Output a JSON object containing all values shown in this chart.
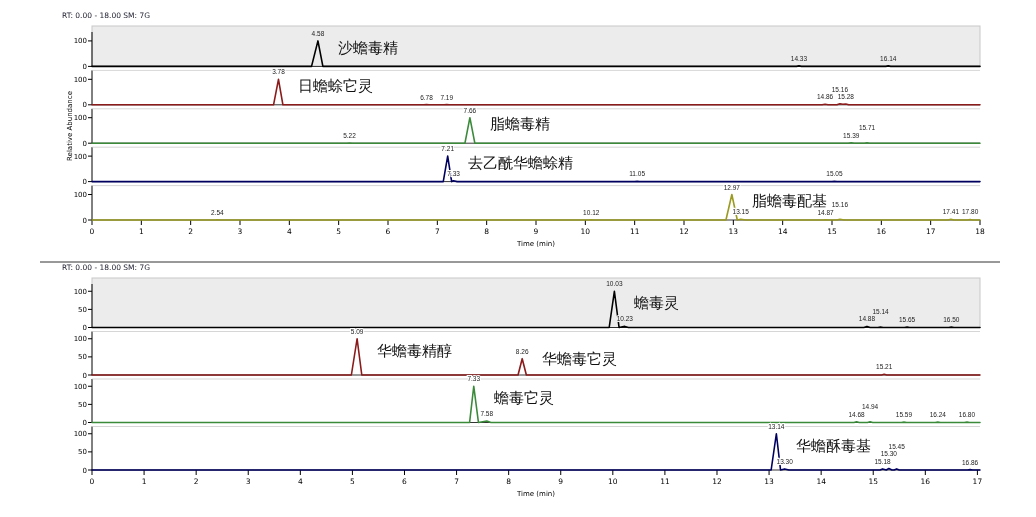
{
  "chart_data": [
    {
      "type": "line",
      "title": "RT: 0.00 - 18.00  SM: 7G",
      "xlim": [
        0,
        18
      ],
      "ylim": [
        0,
        135
      ],
      "yticks": [
        0,
        100
      ],
      "tick_labels": "y",
      "grid": false,
      "series": [
        {
          "color": "#000000",
          "x": [
            0,
            4.45,
            4.58,
            4.68,
            14.28,
            14.33,
            14.38,
            16.09,
            16.14,
            16.19,
            18
          ],
          "values": [
            0,
            0,
            100,
            0,
            0,
            2,
            0,
            0,
            2,
            0,
            0
          ]
        }
      ],
      "annotations": [
        {
          "text": "4.58",
          "x": 4.58,
          "y": 100
        },
        {
          "text": "沙蟾毒精",
          "x": 4.58,
          "y": 100
        },
        {
          "text": "14.33",
          "x": 14.33,
          "y": 2
        },
        {
          "text": "16.14",
          "x": 16.14,
          "y": 2
        }
      ]
    },
    {
      "type": "line",
      "xlim": [
        0,
        18
      ],
      "ylim": [
        0,
        135
      ],
      "yticks": [
        0,
        100
      ],
      "tick_labels": "y",
      "grid": false,
      "series": [
        {
          "color": "#8b1a1a",
          "x": [
            0,
            3.68,
            3.78,
            3.87,
            6.73,
            6.78,
            6.83,
            7.14,
            7.19,
            7.24,
            14.8,
            14.86,
            14.92,
            15.1,
            15.16,
            15.22,
            15.28,
            15.34,
            18
          ],
          "values": [
            0,
            0,
            100,
            0,
            0,
            1,
            0,
            0,
            1,
            0,
            0,
            2,
            0,
            0,
            4,
            2,
            3,
            0,
            0
          ]
        }
      ],
      "annotations": [
        {
          "text": "3.78",
          "x": 3.78,
          "y": 100
        },
        {
          "text": "日蟾蜍它灵",
          "x": 3.78,
          "y": 100
        },
        {
          "text": "6.78",
          "x": 6.78,
          "y": 1
        },
        {
          "text": "7.19",
          "x": 7.19,
          "y": 1
        },
        {
          "text": "14.86",
          "x": 14.86,
          "y": 2
        },
        {
          "text": "15.16",
          "x": 15.16,
          "y": 4
        },
        {
          "text": "15.28",
          "x": 15.28,
          "y": 3
        }
      ]
    },
    {
      "type": "line",
      "ylabel": "Relative Abundance",
      "xlim": [
        0,
        18
      ],
      "ylim": [
        0,
        135
      ],
      "yticks": [
        0,
        100
      ],
      "tick_labels": "y",
      "grid": false,
      "series": [
        {
          "color": "#3a8a3a",
          "x": [
            0,
            5.17,
            5.22,
            5.27,
            7.56,
            7.66,
            7.76,
            15.33,
            15.39,
            15.45,
            15.66,
            15.71,
            15.76,
            18
          ],
          "values": [
            0,
            0,
            1,
            0,
            0,
            100,
            0,
            0,
            2,
            0,
            0,
            2,
            0,
            0
          ]
        }
      ],
      "annotations": [
        {
          "text": "5.22",
          "x": 5.22,
          "y": 1
        },
        {
          "text": "7.66",
          "x": 7.66,
          "y": 100
        },
        {
          "text": "脂蟾毒精",
          "x": 7.66,
          "y": 100
        },
        {
          "text": "15.39",
          "x": 15.39,
          "y": 2
        },
        {
          "text": "15.71",
          "x": 15.71,
          "y": 2
        }
      ]
    },
    {
      "type": "line",
      "xlim": [
        0,
        18
      ],
      "ylim": [
        0,
        135
      ],
      "yticks": [
        0,
        100
      ],
      "tick_labels": "y",
      "grid": false,
      "series": [
        {
          "color": "#000060",
          "x": [
            0,
            7.12,
            7.21,
            7.29,
            7.33,
            7.4,
            11.0,
            11.05,
            11.1,
            15.0,
            15.05,
            15.1,
            18
          ],
          "values": [
            0,
            0,
            100,
            0,
            3,
            0,
            0,
            1,
            0,
            0,
            1,
            0,
            0
          ]
        }
      ],
      "annotations": [
        {
          "text": "7.21",
          "x": 7.21,
          "y": 100
        },
        {
          "text": "去乙酰华蟾蜍精",
          "x": 7.21,
          "y": 100
        },
        {
          "text": "7.33",
          "x": 7.33,
          "y": 3
        },
        {
          "text": "11.05",
          "x": 11.05,
          "y": 1
        },
        {
          "text": "15.05",
          "x": 15.05,
          "y": 1
        }
      ]
    },
    {
      "type": "line",
      "xlabel": "Time (min)",
      "xlim": [
        0,
        18
      ],
      "xticks": [
        0,
        1,
        2,
        3,
        4,
        5,
        6,
        7,
        8,
        9,
        10,
        11,
        12,
        13,
        14,
        15,
        16,
        17,
        18
      ],
      "ylim": [
        0,
        135
      ],
      "yticks": [
        0,
        100
      ],
      "grid": false,
      "series": [
        {
          "color": "#9a9a20",
          "x": [
            0,
            2.49,
            2.54,
            2.59,
            10.07,
            10.12,
            10.17,
            12.85,
            12.97,
            13.08,
            13.15,
            13.25,
            14.82,
            14.87,
            14.92,
            15.1,
            15.16,
            15.25,
            17.35,
            17.41,
            17.47,
            17.75,
            17.8,
            17.85,
            18
          ],
          "values": [
            0,
            0,
            1,
            0,
            0,
            1,
            0,
            0,
            100,
            0,
            3,
            0,
            0,
            1,
            0,
            0,
            3,
            0,
            0,
            3,
            0,
            0,
            2,
            0,
            0
          ]
        }
      ],
      "annotations": [
        {
          "text": "2.54",
          "x": 2.54,
          "y": 1
        },
        {
          "text": "10.12",
          "x": 10.12,
          "y": 1
        },
        {
          "text": "12.97",
          "x": 12.97,
          "y": 100
        },
        {
          "text": "脂蟾毒配基",
          "x": 12.97,
          "y": 100
        },
        {
          "text": "13.15",
          "x": 13.15,
          "y": 3
        },
        {
          "text": "14.87",
          "x": 14.87,
          "y": 1
        },
        {
          "text": "15.16",
          "x": 15.16,
          "y": 3
        },
        {
          "text": "17.41",
          "x": 17.41,
          "y": 3
        },
        {
          "text": "17.80",
          "x": 17.8,
          "y": 2
        }
      ]
    },
    {
      "type": "line",
      "title": "RT: 0.00 - 18.00  SM: 7G",
      "xlim": [
        0,
        17.05
      ],
      "ylim": [
        0,
        120
      ],
      "yticks": [
        0,
        50,
        100
      ],
      "tick_labels": "y",
      "grid": false,
      "series": [
        {
          "color": "#000000",
          "x": [
            0,
            9.93,
            10.03,
            10.12,
            10.23,
            10.3,
            14.82,
            14.88,
            14.94,
            15.09,
            15.14,
            15.19,
            15.6,
            15.65,
            15.7,
            16.45,
            16.5,
            16.55,
            17.05
          ],
          "values": [
            0,
            0,
            100,
            0,
            3,
            0,
            0,
            3,
            0,
            0,
            1,
            0,
            0,
            1,
            0,
            0,
            1,
            0,
            0
          ]
        }
      ],
      "annotations": [
        {
          "text": "10.03",
          "x": 10.03,
          "y": 100
        },
        {
          "text": "蟾毒灵",
          "x": 10.03,
          "y": 100
        },
        {
          "text": "10.23",
          "x": 10.23,
          "y": 3
        },
        {
          "text": "14.88",
          "x": 14.88,
          "y": 3
        },
        {
          "text": "15.14",
          "x": 15.14,
          "y": 1
        },
        {
          "text": "15.65",
          "x": 15.65,
          "y": 1
        },
        {
          "text": "16.50",
          "x": 16.5,
          "y": 1
        }
      ]
    },
    {
      "type": "line",
      "xlim": [
        0,
        17.05
      ],
      "ylim": [
        0,
        120
      ],
      "yticks": [
        0,
        50,
        100
      ],
      "tick_labels": "y",
      "grid": false,
      "series": [
        {
          "color": "#8b1a1a",
          "x": [
            0,
            4.98,
            5.09,
            5.18,
            8.18,
            8.26,
            8.34,
            15.16,
            15.21,
            15.26,
            17.05
          ],
          "values": [
            0,
            0,
            100,
            0,
            0,
            45,
            0,
            0,
            2,
            0,
            0
          ]
        }
      ],
      "annotations": [
        {
          "text": "5.09",
          "x": 5.09,
          "y": 100
        },
        {
          "text": "华蟾毒精醇",
          "x": 5.09,
          "y": 100
        },
        {
          "text": "8.26",
          "x": 8.26,
          "y": 45
        },
        {
          "text": "华蟾毒它灵",
          "x": 8.26,
          "y": 45
        },
        {
          "text": "15.21",
          "x": 15.21,
          "y": 2
        }
      ]
    },
    {
      "type": "line",
      "xlim": [
        0,
        17.05
      ],
      "ylim": [
        0,
        120
      ],
      "yticks": [
        0,
        50,
        100
      ],
      "tick_labels": "y",
      "grid": false,
      "series": [
        {
          "color": "#3a8a3a",
          "x": [
            0,
            7.25,
            7.33,
            7.42,
            7.58,
            7.66,
            14.63,
            14.68,
            14.73,
            14.89,
            14.94,
            14.99,
            15.54,
            15.59,
            15.64,
            16.19,
            16.24,
            16.29,
            16.75,
            16.8,
            16.85,
            17.05
          ],
          "values": [
            0,
            0,
            100,
            0,
            4,
            0,
            0,
            2,
            0,
            0,
            2,
            0,
            0,
            1,
            0,
            0,
            1,
            0,
            0,
            1,
            0,
            0
          ]
        }
      ],
      "annotations": [
        {
          "text": "7.33",
          "x": 7.33,
          "y": 100
        },
        {
          "text": "蟾毒它灵",
          "x": 7.33,
          "y": 100
        },
        {
          "text": "7.58",
          "x": 7.58,
          "y": 4
        },
        {
          "text": "14.68",
          "x": 14.68,
          "y": 2
        },
        {
          "text": "14.94",
          "x": 14.94,
          "y": 2
        },
        {
          "text": "15.59",
          "x": 15.59,
          "y": 1
        },
        {
          "text": "16.24",
          "x": 16.24,
          "y": 1
        },
        {
          "text": "16.80",
          "x": 16.8,
          "y": 1
        }
      ]
    },
    {
      "type": "line",
      "xlabel": "Time (min)",
      "xlim": [
        0,
        17.05
      ],
      "xticks": [
        0,
        1,
        2,
        3,
        4,
        5,
        6,
        7,
        8,
        9,
        10,
        11,
        12,
        13,
        14,
        15,
        16,
        17
      ],
      "ylim": [
        0,
        120
      ],
      "yticks": [
        0,
        50,
        100
      ],
      "grid": false,
      "series": [
        {
          "color": "#000060",
          "x": [
            0,
            13.04,
            13.14,
            13.22,
            13.3,
            13.38,
            15.13,
            15.18,
            15.25,
            15.3,
            15.36,
            15.4,
            15.45,
            15.5,
            16.81,
            16.86,
            16.91,
            17.05
          ],
          "values": [
            0,
            0,
            100,
            0,
            3,
            0,
            0,
            3,
            0,
            4,
            0,
            0,
            3,
            0,
            0,
            1,
            0,
            0
          ]
        }
      ],
      "annotations": [
        {
          "text": "13.14",
          "x": 13.14,
          "y": 100
        },
        {
          "text": "华蟾酥毒基",
          "x": 13.14,
          "y": 100
        },
        {
          "text": "13.30",
          "x": 13.3,
          "y": 3
        },
        {
          "text": "15.18",
          "x": 15.18,
          "y": 3
        },
        {
          "text": "15.30",
          "x": 15.3,
          "y": 4
        },
        {
          "text": "15.45",
          "x": 15.45,
          "y": 3
        },
        {
          "text": "16.86",
          "x": 16.86,
          "y": 1
        }
      ]
    }
  ]
}
